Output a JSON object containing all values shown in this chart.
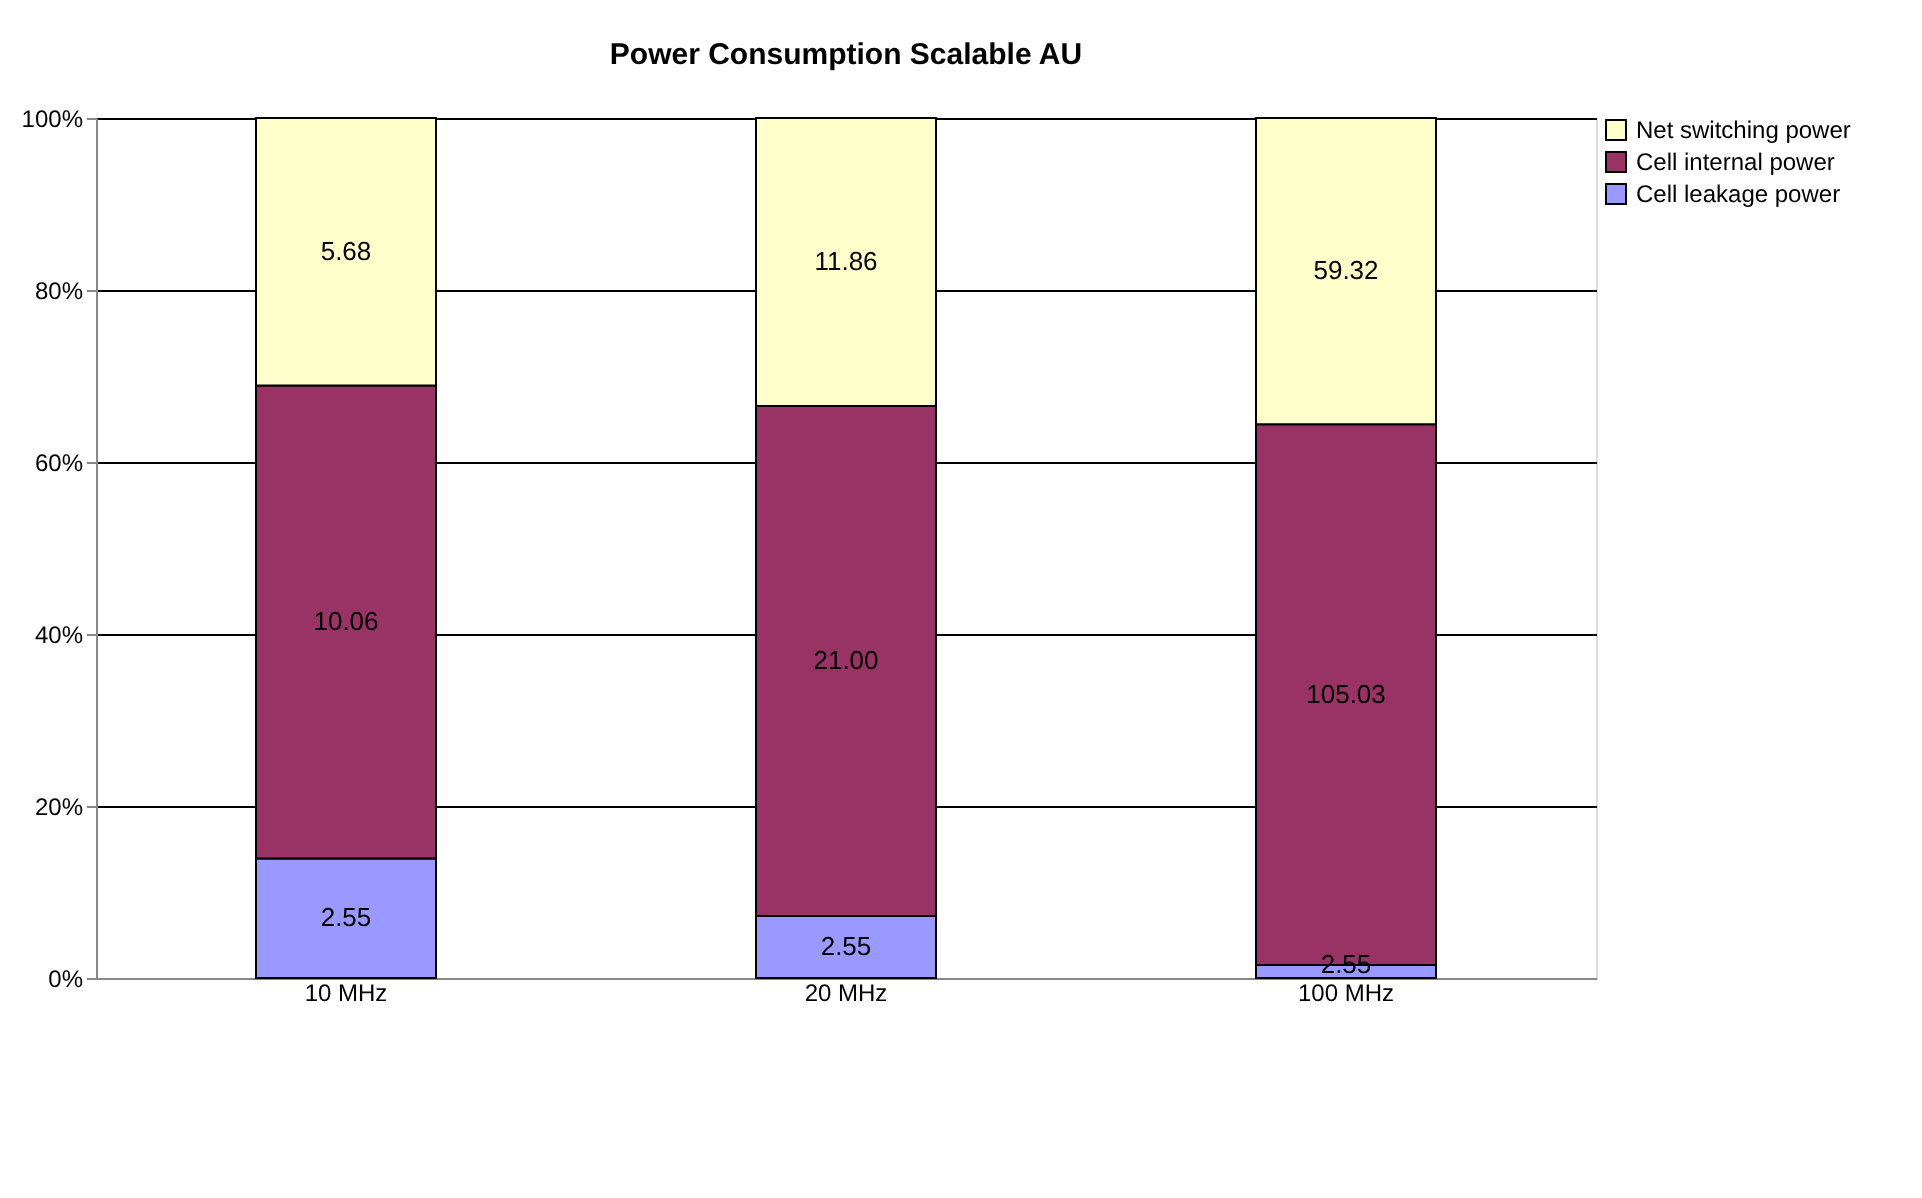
{
  "chart_data": {
    "type": "bar",
    "title": "Power Consumption Scalable AU",
    "categories": [
      "10 MHz",
      "20 MHz",
      "100 MHz"
    ],
    "stacked": true,
    "series": [
      {
        "name": "Cell leakage power",
        "color": "#9999ff",
        "values": [
          13.9,
          7.2,
          1.5
        ]
      },
      {
        "name": "Cell internal power",
        "color": "#993366",
        "values": [
          55.0,
          59.3,
          62.9
        ]
      },
      {
        "name": "Net switching power",
        "color": "#ffffcc",
        "values": [
          31.1,
          33.5,
          35.6
        ]
      }
    ],
    "annotations": [
      "2.55",
      "2.55",
      "2.55",
      "10.06",
      "21.00",
      "105.03",
      "5.68",
      "11.86",
      "59.32"
    ],
    "ylim": [
      0,
      100
    ],
    "yticks": [
      {
        "value": 0,
        "label": "0%"
      },
      {
        "value": 20,
        "label": "20%"
      },
      {
        "value": 40,
        "label": "40%"
      },
      {
        "value": 60,
        "label": "60%"
      },
      {
        "value": 80,
        "label": "80%"
      },
      {
        "value": 100,
        "label": "100%"
      }
    ],
    "grid": "y",
    "legend": "right"
  }
}
